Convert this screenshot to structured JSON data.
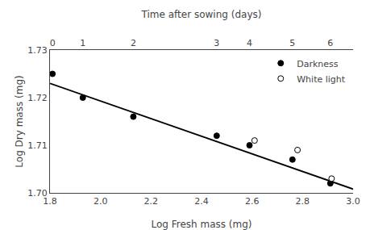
{
  "chart_data": {
    "type": "scatter",
    "xlabel": "Log Fresh mass (mg)",
    "ylabel": "Log Dry mass (mg)",
    "x2label": "Time after sowing (days)",
    "series": [
      {
        "type": "line",
        "color": "#000000",
        "x": [
          1.8,
          3.0
        ],
        "values": [
          1.723,
          1.7008
        ]
      },
      {
        "name": "Darkness",
        "type": "scatter",
        "marker": "filled_circle",
        "color": "#000000",
        "x": [
          1.81,
          1.93,
          2.13,
          2.46,
          2.59,
          2.76,
          2.91
        ],
        "values": [
          1.725,
          1.72,
          1.716,
          1.712,
          1.71,
          1.707,
          1.702
        ]
      },
      {
        "name": "White light",
        "type": "scatter",
        "marker": "open_circle",
        "color": "#000000",
        "x": [
          2.61,
          2.78,
          2.915
        ],
        "values": [
          1.711,
          1.709,
          1.703
        ]
      }
    ],
    "xlim": [
      1.8,
      3.0
    ],
    "xticks": [
      1.8,
      {
        "value": 2.0,
        "label": "2.0"
      },
      2.2,
      2.4,
      2.6,
      2.8,
      {
        "value": 3.0,
        "label": "3.0"
      }
    ],
    "ylim": [
      1.7,
      1.73
    ],
    "yticks": [
      {
        "value": 1.7,
        "label": "1.70"
      },
      1.71,
      1.72,
      1.73
    ],
    "x2lim": [
      1.8,
      3.0
    ],
    "x2ticks": [
      {
        "value": 1.81,
        "label": "0"
      },
      {
        "value": 1.93,
        "label": "1"
      },
      {
        "value": 2.13,
        "label": "2"
      },
      {
        "value": 2.46,
        "label": "3"
      },
      {
        "value": 2.59,
        "label": "4"
      },
      {
        "value": 2.76,
        "label": "5"
      },
      {
        "value": 2.91,
        "label": "6"
      }
    ],
    "legend": "upper right",
    "grid": false
  }
}
